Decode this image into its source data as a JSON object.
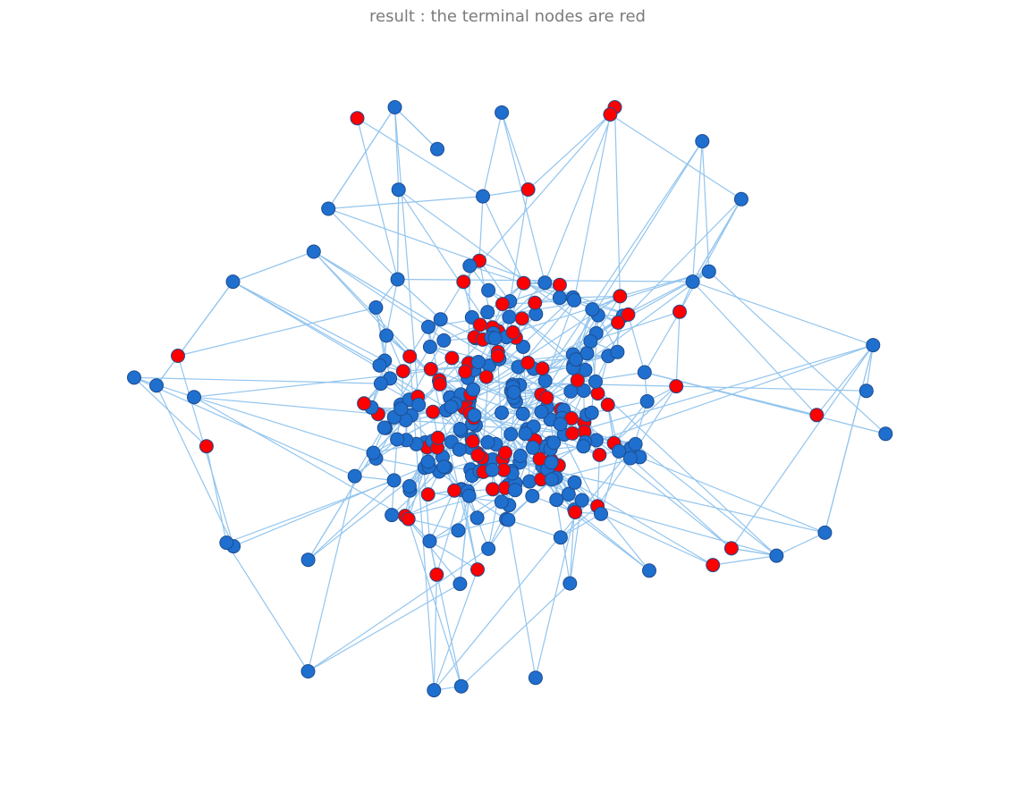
{
  "title": "result : the terminal nodes are red",
  "colors": {
    "background": "#ffffff",
    "edge": "#93c5ee",
    "node": "#1f6fcf",
    "node_stroke": "#1f4d8f",
    "terminal_node": "#ff0000",
    "title": "#7b7b7b"
  },
  "graph": {
    "node_count": 300,
    "terminal_node_count": 88,
    "seed": 1234
  }
}
